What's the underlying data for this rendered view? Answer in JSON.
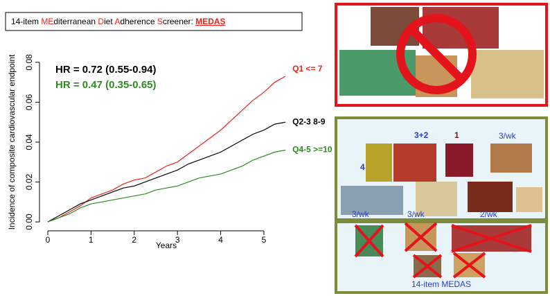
{
  "header": {
    "title_parts": [
      "14-item ",
      "ME",
      "diterranean ",
      "D",
      "iet ",
      "A",
      "dherence ",
      "S",
      "creener: ",
      "MEDAS"
    ]
  },
  "chart_data": {
    "type": "line",
    "y_label": "Incidence of composite cardiovascular endpoint",
    "x_label": "Years",
    "x": [
      0,
      0.25,
      0.5,
      0.75,
      1,
      1.25,
      1.5,
      1.75,
      2,
      2.25,
      2.5,
      2.75,
      3,
      3.25,
      3.5,
      3.75,
      4,
      4.25,
      4.5,
      4.75,
      5,
      5.25,
      5.5
    ],
    "series": [
      {
        "name": "Q1 <= 7",
        "color": "#e8241c",
        "values": [
          0,
          0.002,
          0.005,
          0.008,
          0.012,
          0.014,
          0.016,
          0.019,
          0.021,
          0.022,
          0.025,
          0.028,
          0.03,
          0.034,
          0.038,
          0.042,
          0.046,
          0.051,
          0.056,
          0.061,
          0.065,
          0.07,
          0.073
        ]
      },
      {
        "name": "Q2-3 8-9",
        "color": "#000000",
        "values": [
          0,
          0.003,
          0.006,
          0.009,
          0.011,
          0.013,
          0.015,
          0.017,
          0.018,
          0.02,
          0.022,
          0.024,
          0.026,
          0.029,
          0.031,
          0.033,
          0.035,
          0.038,
          0.041,
          0.044,
          0.046,
          0.049,
          0.05
        ]
      },
      {
        "name": "Q4-5 >=10",
        "color": "#2e8b22",
        "values": [
          0,
          0.002,
          0.004,
          0.007,
          0.009,
          0.01,
          0.011,
          0.012,
          0.013,
          0.014,
          0.016,
          0.017,
          0.018,
          0.02,
          0.022,
          0.023,
          0.024,
          0.026,
          0.028,
          0.031,
          0.033,
          0.035,
          0.036
        ]
      }
    ],
    "annotations": [
      "HR = 0.72 (0.55-0.94)",
      "HR = 0.47 (0.35-0.65)"
    ],
    "xlim": [
      -0.2,
      5.6
    ],
    "xticks": [
      0,
      1,
      2,
      3,
      4,
      5
    ],
    "ylim": [
      -0.0017,
      0.0817
    ],
    "yticks": [
      {
        "value": 0,
        "label": "0.00"
      },
      {
        "value": 0.02,
        "label": "0.02"
      },
      {
        "value": 0.04,
        "label": "0.04"
      },
      {
        "value": 0.06,
        "label": "0.06"
      },
      {
        "value": 0.08,
        "label": "0.08"
      }
    ]
  },
  "panels": {
    "bottom": {
      "labels": [
        "4",
        "3+2",
        "1",
        "3/wk",
        "3/wk",
        "3/wk",
        "2/wk"
      ],
      "caption": "14-item MEDAS"
    }
  }
}
